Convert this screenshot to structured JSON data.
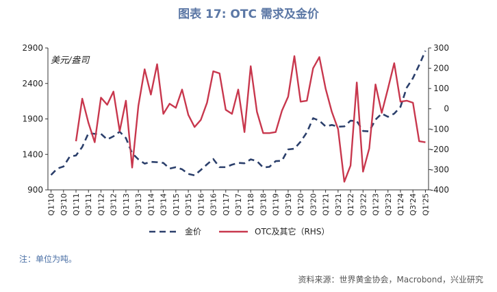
{
  "chart_data": {
    "type": "line",
    "title": "图表 17: OTC 需求及金价",
    "y_label": "美元/盎司",
    "note": "注：单位为吨。",
    "source": "资料来源：世界黄金协会，Macrobond，兴业研究",
    "legend": "bottom",
    "categories": [
      "Q1'10",
      null,
      "Q3'10",
      null,
      "Q1'11",
      null,
      "Q3'11",
      null,
      "Q1'12",
      null,
      "Q3'12",
      null,
      "Q1'13",
      null,
      "Q3'13",
      null,
      "Q1'14",
      null,
      "Q3'14",
      null,
      "Q1'15",
      null,
      "Q3'15",
      null,
      "Q1'16",
      null,
      "Q3'16",
      null,
      "Q1'17",
      null,
      "Q3'17",
      null,
      "Q1'18",
      null,
      "Q3'18",
      null,
      "Q1'19",
      null,
      "Q3'19",
      null,
      "Q1'20",
      null,
      "Q3'20",
      null,
      "Q1'21",
      null,
      "Q3'21",
      null,
      "Q1'22",
      null,
      "Q3'22",
      null,
      "Q1'23",
      null,
      "Q3'23",
      null,
      "Q1'24",
      null,
      "Q3'24",
      null,
      "Q1'25"
    ],
    "ylim": [
      900,
      2900
    ],
    "yticks": [
      900,
      1400,
      1900,
      2400,
      2900
    ],
    "y2lim": [
      -400,
      300
    ],
    "y2ticks": [
      -400,
      -300,
      -200,
      -100,
      0,
      100,
      200,
      300
    ],
    "series": [
      {
        "name": "金价",
        "color": "#2b3f6b",
        "dashed": true,
        "values": [
          1110,
          1200,
          1230,
          1370,
          1385,
          1505,
          1700,
          1690,
          1690,
          1610,
          1655,
          1720,
          1630,
          1415,
          1330,
          1270,
          1295,
          1290,
          1280,
          1200,
          1220,
          1190,
          1125,
          1105,
          1180,
          1260,
          1335,
          1220,
          1220,
          1255,
          1280,
          1275,
          1330,
          1305,
          1215,
          1225,
          1305,
          1310,
          1470,
          1480,
          1580,
          1710,
          1910,
          1875,
          1795,
          1815,
          1790,
          1795,
          1875,
          1870,
          1730,
          1725,
          1890,
          1975,
          1930,
          1975,
          2070,
          2340,
          2475,
          2660,
          2860
        ]
      },
      {
        "name": "OTC及其它（RHS）",
        "color": "#c8374d",
        "axis": "y2",
        "values": [
          null,
          null,
          null,
          null,
          -160,
          50,
          -70,
          -165,
          55,
          20,
          85,
          -110,
          40,
          -290,
          15,
          195,
          70,
          220,
          -25,
          25,
          5,
          95,
          -30,
          -90,
          -55,
          30,
          185,
          175,
          -5,
          -25,
          95,
          -115,
          210,
          -15,
          -120,
          -120,
          -115,
          -10,
          60,
          260,
          35,
          40,
          200,
          255,
          100,
          -15,
          -100,
          -360,
          -280,
          130,
          -310,
          -195,
          120,
          -20,
          100,
          225,
          35,
          40,
          30,
          -160,
          -165
        ]
      }
    ]
  }
}
